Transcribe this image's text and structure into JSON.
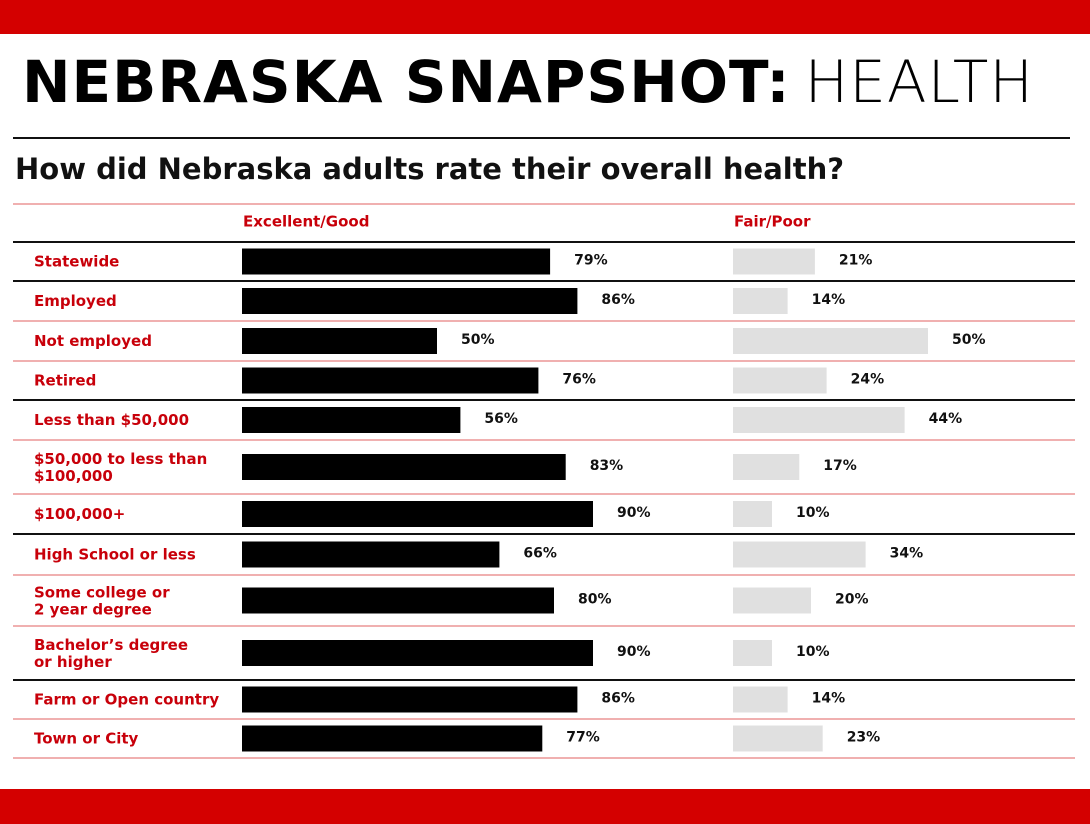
{
  "chart_data": {
    "type": "bar",
    "orientation": "horizontal",
    "title": [
      "NEBRASKA SNAPSHOT:",
      "HEALTH"
    ],
    "subtitle": "How did Nebraska adults rate their overall health?",
    "categories": [
      "Statewide",
      "Employed",
      "Not employed",
      "Retired",
      "Less than $50,000",
      "$50,000 to less than\n$100,000",
      "$100,000+",
      "High School or less",
      "Some college or\n2 year degree",
      "Bachelor’s degree\nor higher",
      "Farm or Open country",
      "Town or City"
    ],
    "xlim": [
      0,
      100
    ],
    "series": [
      {
        "name": "Excellent/Good",
        "color": "#000000",
        "values": [
          79,
          86,
          50,
          76,
          56,
          83,
          90,
          66,
          80,
          90,
          86,
          77
        ],
        "value_labels": [
          "79%",
          "86%",
          "50%",
          "76%",
          "56%",
          "83%",
          "90%",
          "66%",
          "80%",
          "90%",
          "86%",
          "77%"
        ]
      },
      {
        "name": "Fair/Poor",
        "color": "#e0e0e0",
        "values": [
          21,
          14,
          50,
          24,
          44,
          17,
          10,
          34,
          20,
          10,
          14,
          23
        ],
        "value_labels": [
          "21%",
          "14%",
          "50%",
          "24%",
          "44%",
          "17%",
          "10%",
          "34%",
          "20%",
          "10%",
          "14%",
          "23%"
        ]
      }
    ]
  }
}
